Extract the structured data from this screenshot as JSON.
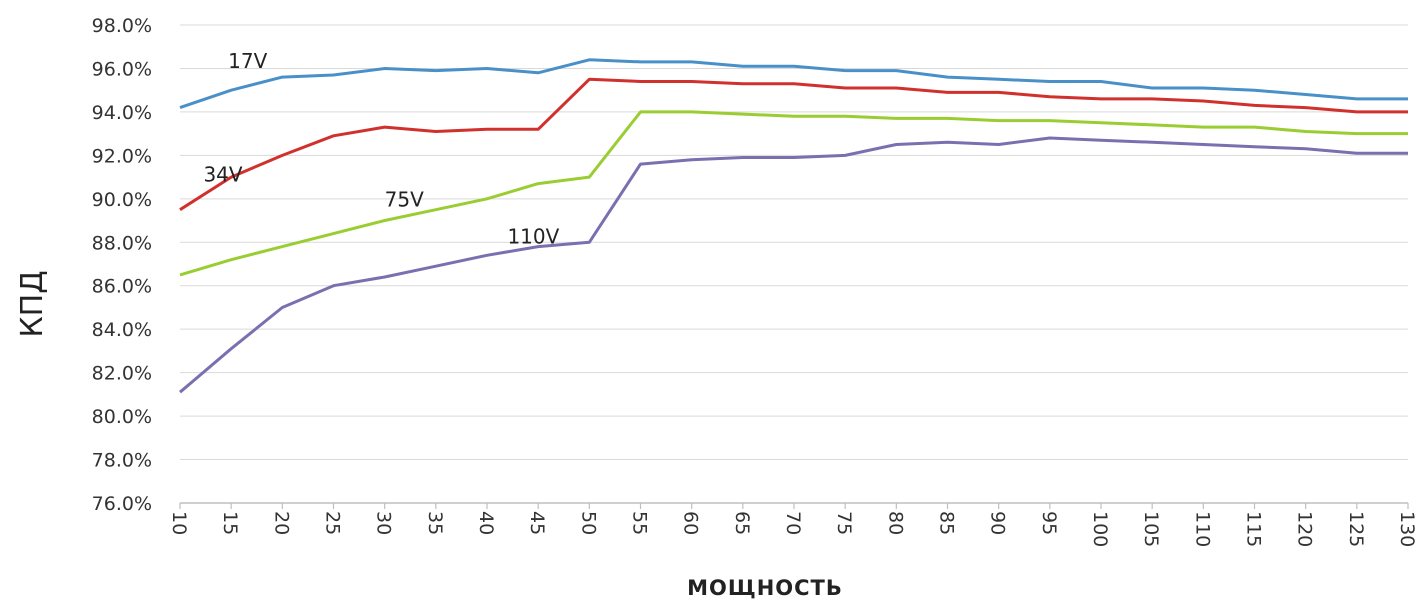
{
  "chart_data": {
    "type": "line",
    "title": "",
    "xlabel": "МОЩНОСТЬ",
    "ylabel": "КПД",
    "x": [
      10,
      15,
      20,
      25,
      30,
      35,
      40,
      45,
      50,
      55,
      60,
      65,
      70,
      75,
      80,
      85,
      90,
      95,
      100,
      105,
      110,
      115,
      120,
      125,
      130
    ],
    "x_tick_labels": [
      "10",
      "15",
      "20",
      "25",
      "30",
      "35",
      "40",
      "45",
      "50",
      "55",
      "60",
      "65",
      "70",
      "75",
      "80",
      "85",
      "90",
      "95",
      "100",
      "105",
      "110",
      "115",
      "120",
      "125",
      "130"
    ],
    "y_tick_labels": [
      "98.0%",
      "96.0%",
      "94.0%",
      "92.0%",
      "90.0%",
      "88.0%",
      "86.0%",
      "84.0%",
      "82.0%",
      "80.0%",
      "78.0%",
      "76.0%"
    ],
    "ylim": [
      76,
      98
    ],
    "y_unit": "%",
    "grid": true,
    "legend": "none",
    "series": [
      {
        "name": "17V",
        "color": "#4a90c8",
        "values": [
          94.2,
          95.0,
          95.6,
          95.7,
          96.0,
          95.9,
          96.0,
          95.8,
          96.4,
          96.3,
          96.3,
          96.1,
          96.1,
          95.9,
          95.9,
          95.6,
          95.5,
          95.4,
          95.4,
          95.1,
          95.1,
          95.0,
          94.8,
          94.6,
          94.6
        ]
      },
      {
        "name": "34V",
        "color": "#d0312d",
        "values": [
          89.5,
          91.0,
          92.0,
          92.9,
          93.3,
          93.1,
          93.2,
          93.2,
          95.5,
          95.4,
          95.4,
          95.3,
          95.3,
          95.1,
          95.1,
          94.9,
          94.9,
          94.7,
          94.6,
          94.6,
          94.5,
          94.3,
          94.2,
          94.0,
          94.0
        ]
      },
      {
        "name": "75V",
        "color": "#9acd32",
        "values": [
          86.5,
          87.2,
          87.8,
          88.4,
          89.0,
          89.5,
          90.0,
          90.7,
          91.0,
          94.0,
          94.0,
          93.9,
          93.8,
          93.8,
          93.7,
          93.7,
          93.6,
          93.6,
          93.5,
          93.4,
          93.3,
          93.3,
          93.1,
          93.0,
          93.0
        ]
      },
      {
        "name": "110V",
        "color": "#7b6fb0",
        "values": [
          81.1,
          83.1,
          85.0,
          86.0,
          86.4,
          86.9,
          87.4,
          87.8,
          88.0,
          91.6,
          91.8,
          91.9,
          91.9,
          92.0,
          92.5,
          92.6,
          92.5,
          92.8,
          92.7,
          92.6,
          92.5,
          92.4,
          92.3,
          92.1,
          92.1
        ]
      }
    ]
  }
}
